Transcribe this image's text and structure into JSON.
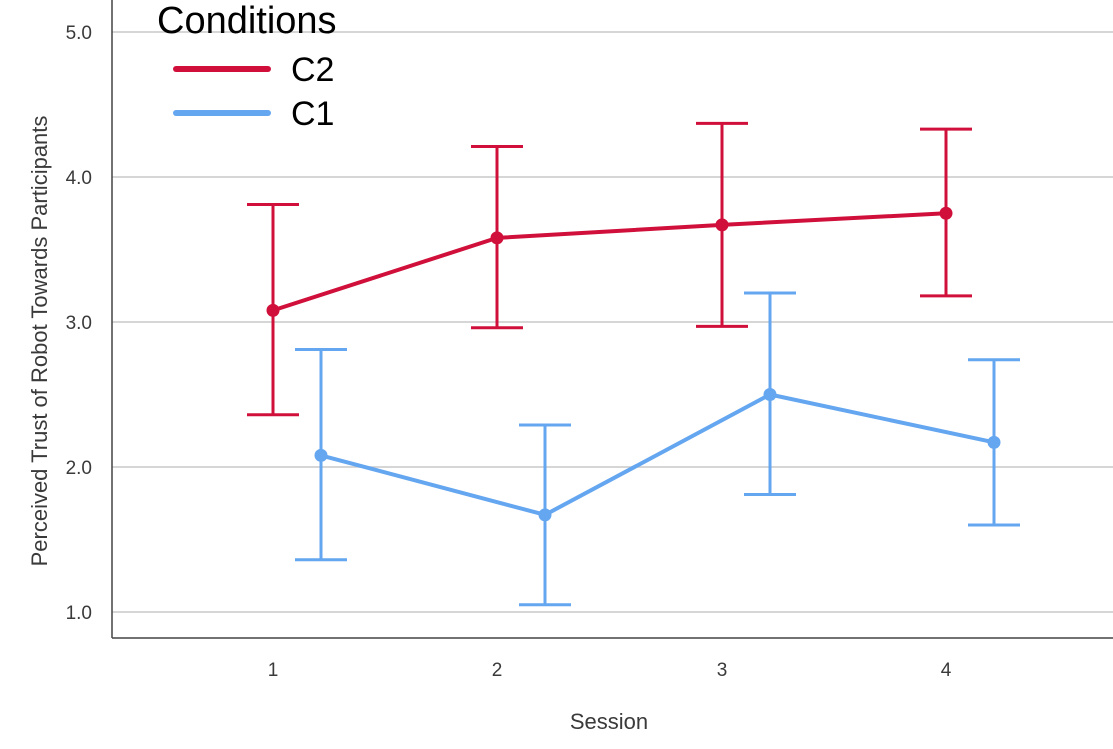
{
  "chart_data": {
    "type": "line",
    "xlabel": "Session",
    "ylabel": "Perceived Trust of Robot Towards Participants",
    "categories": [
      "1",
      "2",
      "3",
      "4"
    ],
    "ylim": [
      0.83,
      5.05
    ],
    "yticks": [
      "5.0",
      "4.0",
      "3.0",
      "2.0",
      "1.0"
    ],
    "ytick_values": [
      5.0,
      4.0,
      3.0,
      2.0,
      1.0
    ],
    "grid": true,
    "error_bars": true,
    "legend": {
      "title": "Conditions",
      "position": "top-left",
      "entries": [
        "C2",
        "C1"
      ]
    },
    "series": [
      {
        "name": "C2",
        "color": "#d0103a",
        "values": [
          3.08,
          3.58,
          3.67,
          3.75
        ],
        "ci_low": [
          2.36,
          2.96,
          2.97,
          3.18
        ],
        "ci_high": [
          3.81,
          4.21,
          4.37,
          4.33
        ]
      },
      {
        "name": "C1",
        "color": "#64a6f0",
        "values": [
          2.08,
          1.67,
          2.5,
          2.17
        ],
        "ci_low": [
          1.36,
          1.05,
          1.81,
          1.6
        ],
        "ci_high": [
          2.81,
          2.29,
          3.2,
          2.74
        ]
      }
    ]
  }
}
